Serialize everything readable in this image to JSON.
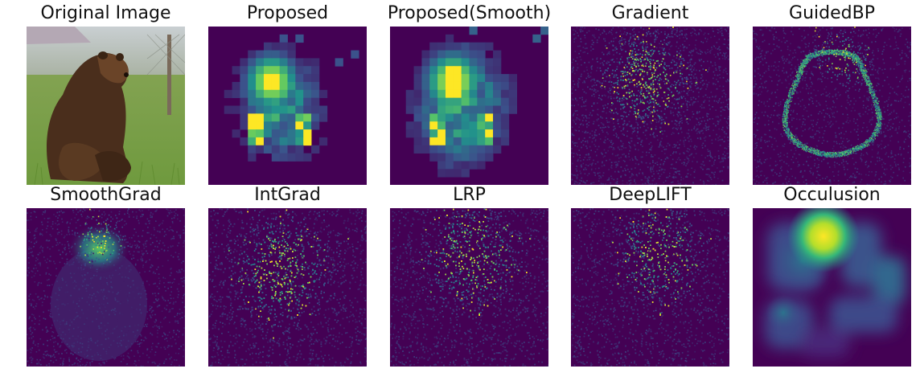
{
  "panels": [
    {
      "title": "Original Image",
      "kind": "photo"
    },
    {
      "title": "Proposed",
      "kind": "blocks"
    },
    {
      "title": "Proposed(Smooth)",
      "kind": "blocks-smooth"
    },
    {
      "title": "Gradient",
      "kind": "noise-center"
    },
    {
      "title": "GuidedBP",
      "kind": "outline"
    },
    {
      "title": "SmoothGrad",
      "kind": "head-glow"
    },
    {
      "title": "IntGrad",
      "kind": "noise-center"
    },
    {
      "title": "LRP",
      "kind": "noise-center"
    },
    {
      "title": "DeepLIFT",
      "kind": "noise-right"
    },
    {
      "title": "Occulusion",
      "kind": "occlusion"
    }
  ],
  "colormap": {
    "name": "viridis",
    "low": "#440154",
    "mid_low": "#3b528b",
    "mid": "#21918c",
    "mid_high": "#5ec962",
    "high": "#fde725"
  }
}
